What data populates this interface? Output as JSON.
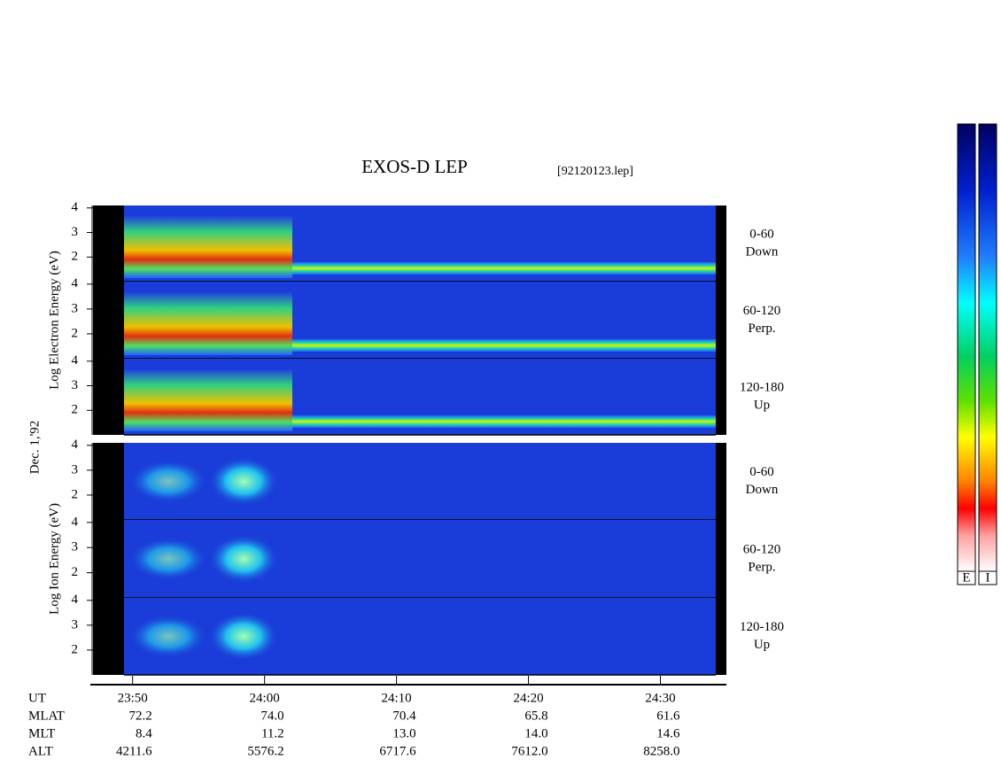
{
  "chart_data": {
    "type": "spectrogram",
    "title": "EXOS-D LEP",
    "file_label": "[92120123.lep]",
    "date_label": "Dec. 1,'92",
    "groups": [
      {
        "ylabel": "Log  Electron  Energy (eV)",
        "panels": [
          {
            "label": [
              "0-60",
              "Down"
            ]
          },
          {
            "label": [
              "60-120",
              "Perp."
            ]
          },
          {
            "label": [
              "120-180",
              "Up"
            ]
          }
        ]
      },
      {
        "ylabel": "Log  Ion  Energy (eV)",
        "panels": [
          {
            "label": [
              "0-60",
              "Down"
            ]
          },
          {
            "label": [
              "60-120",
              "Perp."
            ]
          },
          {
            "label": [
              "120-180",
              "Up"
            ]
          }
        ]
      }
    ],
    "ylim": [
      1,
      4.1
    ],
    "yticks": [
      2,
      3,
      4
    ],
    "xlim": [
      1427,
      1475
    ],
    "xticks": [
      {
        "value": 1430,
        "label": "23:50"
      },
      {
        "value": 1440,
        "label": "24:00"
      },
      {
        "value": 1450,
        "label": "24:10"
      },
      {
        "value": 1460,
        "label": "24:20"
      },
      {
        "value": 1470,
        "label": "24:30"
      }
    ],
    "x_label": "UT",
    "ephemeris": [
      {
        "name": "MLAT",
        "values": [
          "72.2",
          "74.0",
          "70.4",
          "65.8",
          "61.6"
        ]
      },
      {
        "name": "MLT",
        "values": [
          "8.4",
          "11.2",
          "13.0",
          "14.0",
          "14.6"
        ]
      },
      {
        "name": "ALT",
        "values": [
          "4211.6",
          "5576.2",
          "6717.6",
          "7612.0",
          "8258.0"
        ]
      }
    ],
    "colorbars": [
      "E",
      "I"
    ]
  }
}
